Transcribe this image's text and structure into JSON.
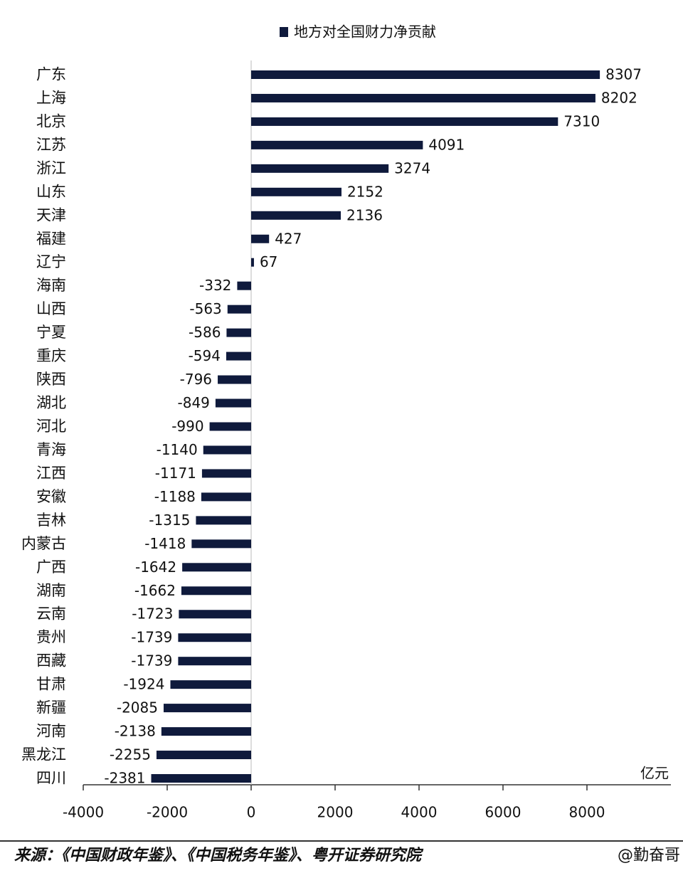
{
  "chart_data": {
    "type": "bar",
    "orientation": "horizontal",
    "categories": [
      "广东",
      "上海",
      "北京",
      "江苏",
      "浙江",
      "山东",
      "天津",
      "福建",
      "辽宁",
      "海南",
      "山西",
      "宁夏",
      "重庆",
      "陕西",
      "湖北",
      "河北",
      "青海",
      "江西",
      "安徽",
      "吉林",
      "内蒙古",
      "广西",
      "湖南",
      "云南",
      "贵州",
      "西藏",
      "甘肃",
      "新疆",
      "河南",
      "黑龙江",
      "四川"
    ],
    "series": [
      {
        "name": "地方对全国财力净贡献",
        "color": "#0f1a3c",
        "values": [
          8307,
          8202,
          7310,
          4091,
          3274,
          2152,
          2136,
          427,
          67,
          -332,
          -563,
          -586,
          -594,
          -796,
          -849,
          -990,
          -1140,
          -1171,
          -1188,
          -1315,
          -1418,
          -1642,
          -1662,
          -1723,
          -1739,
          -1739,
          -1924,
          -2085,
          -2138,
          -2255,
          -2381
        ]
      }
    ],
    "xlim": [
      -4000,
      10000
    ],
    "xticks": [
      -4000,
      -2000,
      0,
      2000,
      4000,
      6000,
      8000
    ],
    "x_unit_label": "亿元",
    "legend": "top",
    "source": "来源：《中国财政年鉴》、《中国税务年鉴》、粤开证券研究院",
    "watermark": "@勤奋哥"
  }
}
